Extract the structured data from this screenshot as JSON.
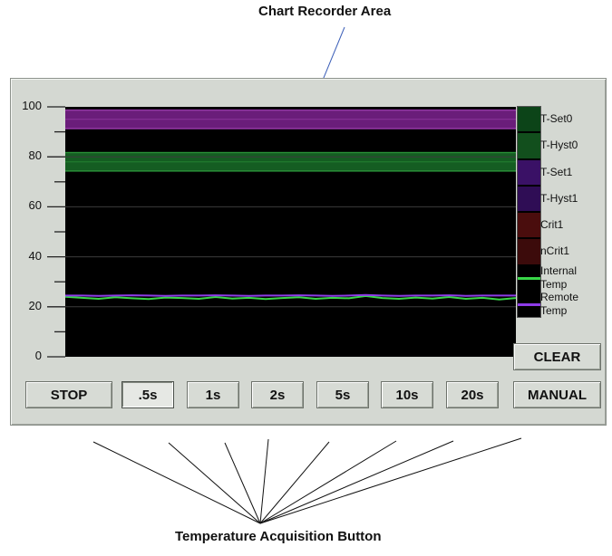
{
  "callouts": {
    "top": "Chart Recorder Area",
    "bottom": "Temperature Acquisition Button"
  },
  "chart_data": {
    "type": "line",
    "ylim": [
      0,
      100
    ],
    "y_tick_labels": [
      "0",
      "20",
      "40",
      "60",
      "80",
      "100"
    ],
    "major_ticks": [
      0,
      20,
      40,
      60,
      80,
      100
    ],
    "minor_ticks": [
      10,
      30,
      50,
      70,
      90
    ],
    "grid": true,
    "background": "#000000",
    "bands": [
      {
        "name": "T-Set0 / T-Hyst0",
        "range": [
          91,
          99
        ],
        "color": "#6a1d7a",
        "edge_color": "#a043b2"
      },
      {
        "name": "T-Set1 / T-Hyst1",
        "range": [
          74,
          82
        ],
        "color": "#155d22",
        "edge_color": "#2e9a3c"
      }
    ],
    "series": [
      {
        "name": "Internal Temp",
        "color": "#38d648",
        "values": [
          24,
          23.6,
          23.2,
          23.8,
          23.4,
          23.1,
          23.7,
          23.5,
          23.2,
          23.9,
          23.3,
          23.6,
          23.1,
          23.5,
          23.8,
          23.2,
          23.6,
          23.4,
          24.3,
          23.5,
          23.2,
          23.7,
          23.3,
          23.9,
          23.2,
          23.6,
          22.9,
          23.5
        ]
      },
      {
        "name": "Remote Temp",
        "color": "#8e3be8",
        "values": [
          24.5,
          24.5,
          24.4,
          24.5,
          24.6,
          24.5,
          24.4,
          24.5,
          24.5,
          24.6,
          24.5,
          24.4,
          24.5,
          24.5,
          24.6,
          24.5,
          24.4,
          24.5,
          24.7,
          24.5,
          24.4,
          24.5,
          24.5,
          24.6,
          24.4,
          24.5,
          24.5,
          24.5
        ]
      }
    ]
  },
  "legend": [
    {
      "label": "T-Set0",
      "color": "#0c4418"
    },
    {
      "label": "T-Hyst0",
      "color": "#124f1d"
    },
    {
      "label": "T-Set1",
      "color": "#3a1166"
    },
    {
      "label": "T-Hyst1",
      "color": "#2f0d55"
    },
    {
      "label": "Crit1",
      "color": "#4a0d0d"
    },
    {
      "label": "nCrit1",
      "color": "#3c0b0b"
    },
    {
      "label": "Internal\nTemp",
      "color": "#000000",
      "line_color": "#38d648"
    },
    {
      "label": "Remote\nTemp",
      "color": "#000000",
      "line_color": "#8e3be8"
    }
  ],
  "buttons": {
    "clear": "CLEAR",
    "manual": "MANUAL",
    "stop": "STOP",
    "intervals": [
      ".5s",
      "1s",
      "2s",
      "5s",
      "10s",
      "20s"
    ],
    "selected_interval": ".5s"
  }
}
